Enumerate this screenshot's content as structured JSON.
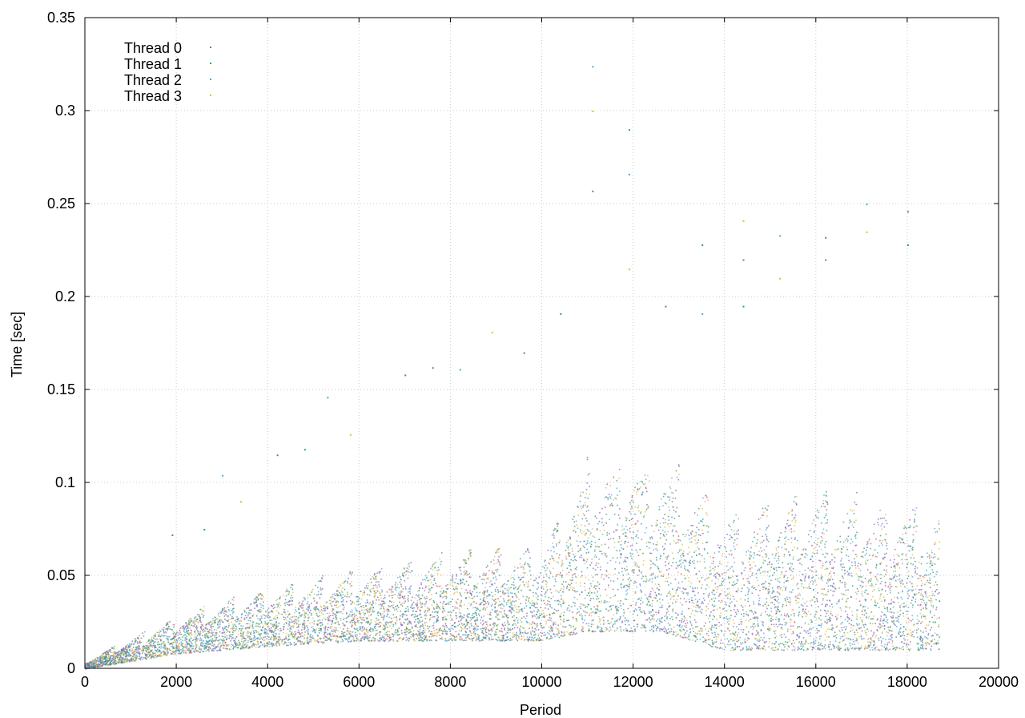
{
  "chart_data": {
    "type": "scatter",
    "title": "",
    "xlabel": "Period",
    "ylabel": "Time [sec]",
    "xlim": [
      0,
      20000
    ],
    "ylim": [
      0,
      0.35
    ],
    "x_ticks": [
      0,
      2000,
      4000,
      6000,
      8000,
      10000,
      12000,
      14000,
      16000,
      18000,
      20000
    ],
    "y_ticks": [
      0,
      0.05,
      0.1,
      0.15,
      0.2,
      0.25,
      0.3,
      0.35
    ],
    "x_tick_labels": [
      "0",
      "2000",
      "4000",
      "6000",
      "8000",
      "10000",
      "12000",
      "14000",
      "16000",
      "18000",
      "20000"
    ],
    "y_tick_labels": [
      "0",
      "0.05",
      "0.1",
      "0.15",
      "0.2",
      "0.25",
      "0.3",
      "0.35"
    ],
    "grid": true,
    "legend_position": "top-left",
    "series": [
      {
        "name": "Thread 0",
        "color": "#9b59b6",
        "marker": "dot"
      },
      {
        "name": "Thread 1",
        "color": "#2e9e6f",
        "marker": "dot"
      },
      {
        "name": "Thread 2",
        "color": "#4aa8e0",
        "marker": "dot"
      },
      {
        "name": "Thread 3",
        "color": "#e8b83c",
        "marker": "dot"
      }
    ],
    "x_max_data": 18700,
    "trend": [
      {
        "x": 0,
        "y_low": 0.0,
        "y_high": 0.005
      },
      {
        "x": 2000,
        "y_low": 0.008,
        "y_high": 0.03
      },
      {
        "x": 4000,
        "y_low": 0.012,
        "y_high": 0.045
      },
      {
        "x": 6000,
        "y_low": 0.015,
        "y_high": 0.055
      },
      {
        "x": 8000,
        "y_low": 0.015,
        "y_high": 0.065
      },
      {
        "x": 10000,
        "y_low": 0.015,
        "y_high": 0.07
      },
      {
        "x": 11000,
        "y_low": 0.02,
        "y_high": 0.12
      },
      {
        "x": 12600,
        "y_low": 0.02,
        "y_high": 0.12
      },
      {
        "x": 14000,
        "y_low": 0.01,
        "y_high": 0.09
      },
      {
        "x": 16000,
        "y_low": 0.01,
        "y_high": 0.1
      },
      {
        "x": 18700,
        "y_low": 0.01,
        "y_high": 0.09
      }
    ],
    "outliers": [
      {
        "x": 1900,
        "y": 0.072
      },
      {
        "x": 2600,
        "y": 0.075
      },
      {
        "x": 3000,
        "y": 0.104
      },
      {
        "x": 3400,
        "y": 0.09
      },
      {
        "x": 4200,
        "y": 0.115
      },
      {
        "x": 4800,
        "y": 0.118
      },
      {
        "x": 5300,
        "y": 0.146
      },
      {
        "x": 5800,
        "y": 0.126
      },
      {
        "x": 7000,
        "y": 0.158
      },
      {
        "x": 7600,
        "y": 0.162
      },
      {
        "x": 8200,
        "y": 0.161
      },
      {
        "x": 8900,
        "y": 0.181
      },
      {
        "x": 9600,
        "y": 0.17
      },
      {
        "x": 10400,
        "y": 0.191
      },
      {
        "x": 11100,
        "y": 0.324
      },
      {
        "x": 11100,
        "y": 0.3
      },
      {
        "x": 11100,
        "y": 0.257
      },
      {
        "x": 11900,
        "y": 0.29
      },
      {
        "x": 11900,
        "y": 0.266
      },
      {
        "x": 11900,
        "y": 0.215
      },
      {
        "x": 12700,
        "y": 0.195
      },
      {
        "x": 13500,
        "y": 0.228
      },
      {
        "x": 13500,
        "y": 0.191
      },
      {
        "x": 14400,
        "y": 0.241
      },
      {
        "x": 14400,
        "y": 0.22
      },
      {
        "x": 14400,
        "y": 0.195
      },
      {
        "x": 15200,
        "y": 0.233
      },
      {
        "x": 15200,
        "y": 0.21
      },
      {
        "x": 16200,
        "y": 0.232
      },
      {
        "x": 16200,
        "y": 0.22
      },
      {
        "x": 17100,
        "y": 0.25
      },
      {
        "x": 17100,
        "y": 0.235
      },
      {
        "x": 18000,
        "y": 0.246
      },
      {
        "x": 18000,
        "y": 0.228
      }
    ]
  }
}
